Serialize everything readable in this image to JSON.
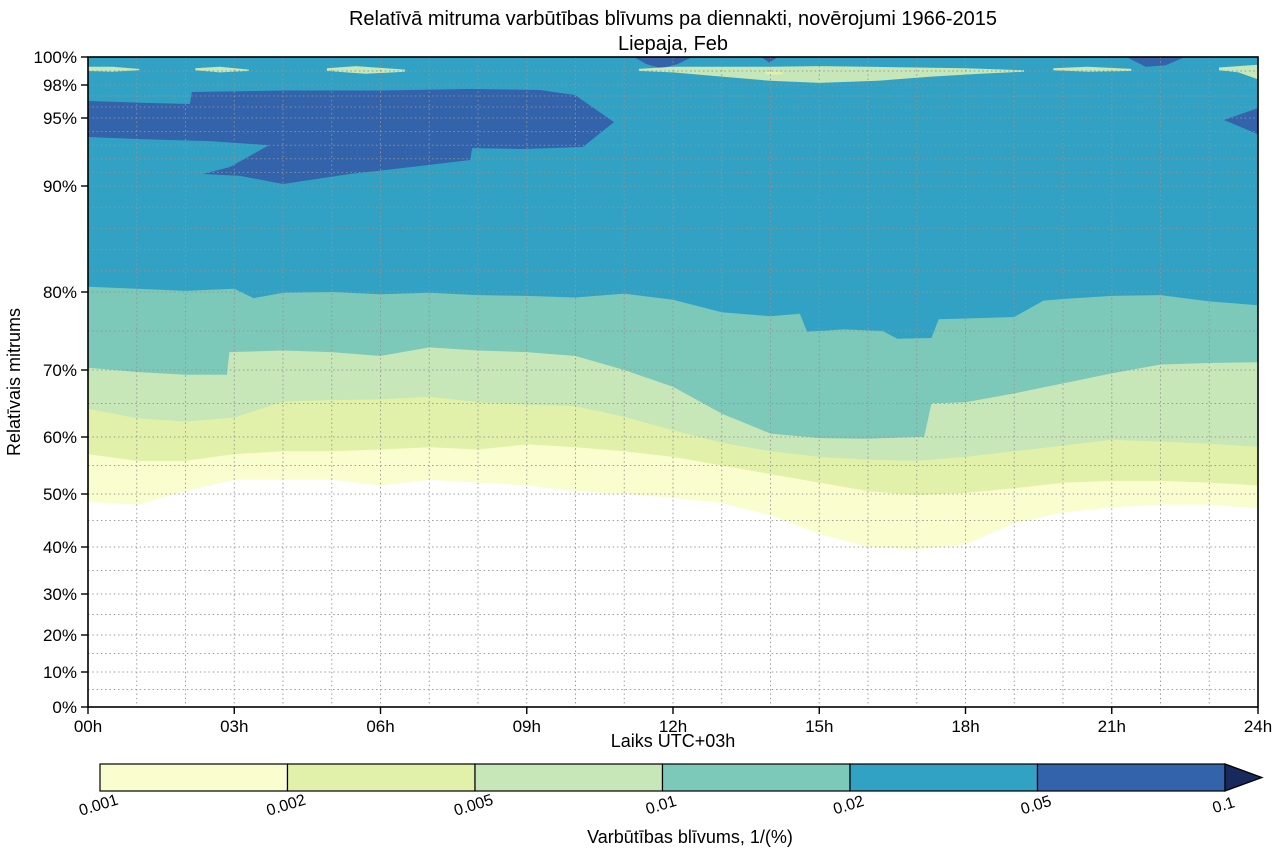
{
  "title": {
    "line1": "Relatīvā mitruma varbūtības blīvums pa diennakti, novērojumi 1966-2015",
    "line2": "Liepaja, Feb"
  },
  "axes": {
    "x_label": "Laiks UTC+03h",
    "y_label": "Relatīvais mitrums",
    "x_ticks": [
      {
        "t": 0,
        "label": "00h"
      },
      {
        "t": 3,
        "label": "03h"
      },
      {
        "t": 6,
        "label": "06h"
      },
      {
        "t": 9,
        "label": "09h"
      },
      {
        "t": 12,
        "label": "12h"
      },
      {
        "t": 15,
        "label": "15h"
      },
      {
        "t": 18,
        "label": "18h"
      },
      {
        "t": 21,
        "label": "21h"
      },
      {
        "t": 24,
        "label": "24h"
      }
    ],
    "y_ticks": [
      {
        "rh": 100,
        "label": "100%"
      },
      {
        "rh": 98,
        "label": "98%"
      },
      {
        "rh": 95,
        "label": "95%"
      },
      {
        "rh": 90,
        "label": "90%"
      },
      {
        "rh": 80,
        "label": "80%"
      },
      {
        "rh": 70,
        "label": "70%"
      },
      {
        "rh": 60,
        "label": "60%"
      },
      {
        "rh": 50,
        "label": "50%"
      },
      {
        "rh": 40,
        "label": "40%"
      },
      {
        "rh": 30,
        "label": "30%"
      },
      {
        "rh": 20,
        "label": "20%"
      },
      {
        "rh": 10,
        "label": "10%"
      },
      {
        "rh": 0,
        "label": "0%"
      }
    ]
  },
  "chart_data": {
    "type": "filled-contour",
    "title": "Relatīvā mitruma varbūtības blīvums pa diennakti, novērojumi 1966-2015",
    "subtitle": "Liepaja, Feb",
    "xlabel": "Laiks UTC+03h",
    "ylabel": "Relatīvais mitrums",
    "x_range_hours": [
      0,
      24
    ],
    "y_range_percent": [
      0,
      100
    ],
    "y_scale_anchors": [
      [
        0,
        707
      ],
      [
        10,
        672
      ],
      [
        20,
        635
      ],
      [
        30,
        594
      ],
      [
        40,
        547
      ],
      [
        50,
        494
      ],
      [
        60,
        437
      ],
      [
        70,
        370
      ],
      [
        80,
        292
      ],
      [
        90,
        186
      ],
      [
        95,
        118
      ],
      [
        98,
        85
      ],
      [
        99,
        71
      ],
      [
        100,
        57
      ]
    ],
    "grid": {
      "x_gridline_hours": [
        1,
        2,
        3,
        4,
        5,
        6,
        7,
        8,
        9,
        10,
        11,
        12,
        13,
        14,
        15,
        16,
        17,
        18,
        19,
        20,
        21,
        22,
        23
      ],
      "y_gridline_values": [
        99,
        98,
        97,
        96,
        95,
        94,
        93,
        92,
        91,
        90,
        88,
        86,
        84,
        82,
        80,
        75,
        70,
        65,
        60,
        55,
        50,
        45,
        40,
        35,
        30,
        25,
        20,
        15,
        10,
        5
      ]
    },
    "levels": [
      0.001,
      0.002,
      0.005,
      0.01,
      0.02,
      0.05,
      0.1
    ],
    "band_colors": {
      "0.001-0.002": "#fafdcd",
      "0.002-0.005": "#e2f1a9",
      "0.005-0.01": "#c7e7b8",
      "0.01-0.02": "#7cc8b9",
      "0.02-0.05": "#31a2c4",
      "0.05-0.1": "#3363ab",
      "over-0.1": "#17295d",
      "under-0.001": "#ffffff"
    },
    "bands": [
      {
        "level": 0.001,
        "color": "#fafdcd",
        "lower_boundary": [
          [
            0,
            48.5
          ],
          [
            1,
            48.0
          ],
          [
            2,
            50.5
          ],
          [
            3,
            52.5
          ],
          [
            4,
            52.5
          ],
          [
            5,
            52.5
          ],
          [
            6,
            51.5
          ],
          [
            7,
            52.5
          ],
          [
            8,
            52.0
          ],
          [
            9,
            51.5
          ],
          [
            10,
            50.5
          ],
          [
            11,
            50.0
          ],
          [
            12,
            49.3
          ],
          [
            13,
            48.3
          ],
          [
            14,
            46.0
          ],
          [
            15,
            42.5
          ],
          [
            16,
            40.0
          ],
          [
            17,
            39.5
          ],
          [
            18,
            40.5
          ],
          [
            19,
            44.5
          ],
          [
            20,
            46.5
          ],
          [
            21,
            47.5
          ],
          [
            22,
            48.0
          ],
          [
            23,
            48.0
          ],
          [
            24,
            47.3
          ]
        ]
      },
      {
        "level": 0.002,
        "color": "#e2f1a9",
        "lower_boundary": [
          [
            0,
            57.0
          ],
          [
            1,
            55.8
          ],
          [
            2,
            55.8
          ],
          [
            3,
            57.0
          ],
          [
            4,
            57.5
          ],
          [
            5,
            57.5
          ],
          [
            6,
            57.8
          ],
          [
            7,
            58.2
          ],
          [
            8,
            57.8
          ],
          [
            9,
            58.7
          ],
          [
            10,
            58.2
          ],
          [
            11,
            57.5
          ],
          [
            12,
            56.5
          ],
          [
            13,
            55.0
          ],
          [
            14,
            53.5
          ],
          [
            15,
            52.0
          ],
          [
            16,
            50.5
          ],
          [
            17,
            49.8
          ],
          [
            18,
            50.2
          ],
          [
            19,
            51.0
          ],
          [
            20,
            52.0
          ],
          [
            21,
            52.3
          ],
          [
            22,
            52.3
          ],
          [
            23,
            52.0
          ],
          [
            24,
            51.5
          ]
        ]
      },
      {
        "level": 0.005,
        "color": "#c7e7b8",
        "lower_boundary": [
          [
            0,
            64.2
          ],
          [
            1,
            62.8
          ],
          [
            2,
            62.3
          ],
          [
            3,
            62.9
          ],
          [
            4,
            65.3
          ],
          [
            5,
            65.5
          ],
          [
            6,
            65.6
          ],
          [
            7,
            66.0
          ],
          [
            8,
            65.2
          ],
          [
            9,
            64.8
          ],
          [
            10,
            64.6
          ],
          [
            11,
            63.0
          ],
          [
            12,
            61.0
          ],
          [
            13,
            59.0
          ],
          [
            14,
            57.5
          ],
          [
            15,
            56.5
          ],
          [
            16,
            56.0
          ],
          [
            17,
            55.8
          ],
          [
            18,
            56.5
          ],
          [
            19,
            57.5
          ],
          [
            20,
            58.5
          ],
          [
            21,
            59.5
          ],
          [
            22,
            59.2
          ],
          [
            23,
            58.8
          ],
          [
            24,
            58.3
          ]
        ]
      },
      {
        "level": 0.01,
        "color": "#7cc8b9",
        "lower_boundary": [
          [
            0,
            70.3
          ],
          [
            1,
            69.7
          ],
          [
            2,
            69.3
          ],
          [
            2.85,
            69.3
          ],
          [
            2.9,
            72.3
          ],
          [
            4,
            72.5
          ],
          [
            5,
            72.3
          ],
          [
            6,
            71.8
          ],
          [
            7,
            72.9
          ],
          [
            8,
            72.5
          ],
          [
            9,
            72.3
          ],
          [
            10,
            71.8
          ],
          [
            11,
            70.0
          ],
          [
            12,
            67.5
          ],
          [
            13,
            63.5
          ],
          [
            14,
            60.5
          ],
          [
            15,
            59.8
          ],
          [
            16,
            59.7
          ],
          [
            17,
            60.0
          ],
          [
            17.15,
            60.0
          ],
          [
            17.3,
            65.0
          ],
          [
            18,
            65.2
          ],
          [
            19,
            66.5
          ],
          [
            20,
            68.0
          ],
          [
            21,
            69.5
          ],
          [
            22,
            70.7
          ],
          [
            23,
            70.9
          ],
          [
            24,
            71.0
          ]
        ]
      },
      {
        "level": 0.02,
        "color": "#31a2c4",
        "lower_boundary": [
          [
            0,
            80.5
          ],
          [
            1,
            80.3
          ],
          [
            2,
            80.1
          ],
          [
            3,
            80.3
          ],
          [
            3.4,
            79.2
          ],
          [
            4,
            79.9
          ],
          [
            5,
            80.0
          ],
          [
            6,
            79.7
          ],
          [
            7,
            79.9
          ],
          [
            8,
            79.6
          ],
          [
            9,
            79.5
          ],
          [
            10,
            79.3
          ],
          [
            11,
            79.8
          ],
          [
            12,
            79.0
          ],
          [
            13,
            77.4
          ],
          [
            14,
            76.9
          ],
          [
            14.6,
            77.2
          ],
          [
            14.75,
            74.9
          ],
          [
            15.5,
            75.2
          ],
          [
            16.3,
            75.0
          ],
          [
            16.6,
            74.0
          ],
          [
            17.3,
            74.1
          ],
          [
            17.45,
            76.5
          ],
          [
            18,
            76.6
          ],
          [
            19,
            76.8
          ],
          [
            19.6,
            78.9
          ],
          [
            20,
            79.1
          ],
          [
            21,
            79.5
          ],
          [
            22,
            79.6
          ],
          [
            23,
            78.8
          ],
          [
            24,
            78.3
          ]
        ]
      }
    ],
    "high_density_blobs": [
      {
        "name": "main-morning-blob",
        "level": 0.05,
        "color": "#3363ab",
        "polygon": [
          [
            0,
            96.55
          ],
          [
            1,
            96.4
          ],
          [
            2.09,
            96.27
          ],
          [
            2.13,
            97.36
          ],
          [
            4,
            97.5
          ],
          [
            6,
            97.5
          ],
          [
            7.84,
            97.64
          ],
          [
            9.27,
            97.55
          ],
          [
            9.99,
            97.09
          ],
          [
            10.79,
            94.7
          ],
          [
            10.15,
            92.87
          ],
          [
            8.92,
            92.72
          ],
          [
            7.88,
            92.79
          ],
          [
            7.84,
            91.91
          ],
          [
            6.81,
            91.47
          ],
          [
            5.37,
            90.88
          ],
          [
            4.0,
            90.15
          ],
          [
            3.12,
            90.74
          ],
          [
            2.36,
            90.88
          ],
          [
            2.91,
            91.4
          ],
          [
            3.71,
            93.0
          ],
          [
            2.5,
            93.3
          ],
          [
            1.07,
            93.45
          ],
          [
            0,
            93.6
          ]
        ]
      },
      {
        "name": "right-edge-blob",
        "level": 0.05,
        "color": "#3363ab",
        "polygon": [
          [
            24,
            95.9
          ],
          [
            24,
            93.8
          ],
          [
            23.3,
            94.85
          ]
        ]
      },
      {
        "name": "top-edge-patch-noon",
        "level": 0.05,
        "color": "#3363ab",
        "polygon": [
          [
            11.2,
            100
          ],
          [
            12.4,
            100
          ],
          [
            12.1,
            99.5
          ],
          [
            11.75,
            99.2
          ],
          [
            11.45,
            99.5
          ]
        ]
      },
      {
        "name": "top-edge-patch-14h",
        "level": 0.05,
        "color": "#3363ab",
        "polygon": [
          [
            13.8,
            100
          ],
          [
            14.15,
            100
          ],
          [
            13.98,
            99.6
          ]
        ]
      },
      {
        "name": "top-edge-patch-22h",
        "level": 0.05,
        "color": "#3363ab",
        "polygon": [
          [
            21.3,
            100
          ],
          [
            22.5,
            100
          ],
          [
            22.1,
            99.4
          ],
          [
            21.7,
            99.3
          ]
        ]
      }
    ],
    "low_density_streaks": [
      {
        "name": "streak-00h",
        "color": "#c7e7b8",
        "polygon": [
          [
            0,
            99.3
          ],
          [
            0.5,
            99.3
          ],
          [
            1.05,
            99.15
          ],
          [
            1.05,
            99.05
          ],
          [
            0.5,
            98.95
          ],
          [
            0,
            99.0
          ]
        ]
      },
      {
        "name": "streak-03h",
        "color": "#c7e7b8",
        "polygon": [
          [
            2.2,
            99.2
          ],
          [
            2.7,
            99.3
          ],
          [
            3.3,
            99.1
          ],
          [
            3.3,
            99.0
          ],
          [
            2.7,
            98.9
          ],
          [
            2.2,
            99.05
          ]
        ]
      },
      {
        "name": "streak-06h",
        "color": "#c7e7b8",
        "polygon": [
          [
            4.9,
            99.2
          ],
          [
            5.5,
            99.35
          ],
          [
            6.5,
            99.1
          ],
          [
            6.5,
            98.95
          ],
          [
            5.7,
            98.8
          ],
          [
            4.9,
            99.0
          ]
        ]
      },
      {
        "name": "streak-afternoon",
        "color": "#c7e7b8",
        "polygon": [
          [
            11.3,
            99.15
          ],
          [
            12,
            99.3
          ],
          [
            13,
            99.3
          ],
          [
            14,
            99.3
          ],
          [
            15,
            99.35
          ],
          [
            16,
            99.3
          ],
          [
            17,
            99.25
          ],
          [
            18,
            99.2
          ],
          [
            19.2,
            99.05
          ],
          [
            19.2,
            98.95
          ],
          [
            18.3,
            98.8
          ],
          [
            17.3,
            98.6
          ],
          [
            16.2,
            98.3
          ],
          [
            15,
            98.15
          ],
          [
            14,
            98.3
          ],
          [
            13,
            98.6
          ],
          [
            12,
            98.9
          ],
          [
            11.3,
            99.0
          ]
        ]
      },
      {
        "name": "streak-20h",
        "color": "#c7e7b8",
        "polygon": [
          [
            19.8,
            99.2
          ],
          [
            20.5,
            99.3
          ],
          [
            21.4,
            99.15
          ],
          [
            21.4,
            99.0
          ],
          [
            20.5,
            98.95
          ],
          [
            19.8,
            99.05
          ]
        ]
      },
      {
        "name": "streak-24h",
        "color": "#c7e7b8",
        "polygon": [
          [
            23.2,
            99.25
          ],
          [
            24,
            99.45
          ],
          [
            24,
            98.4
          ],
          [
            23.6,
            98.9
          ],
          [
            23.2,
            99.05
          ]
        ]
      },
      {
        "name": "streak-dash-14h",
        "color": "#e2f1a9",
        "polygon": [
          [
            13.9,
            98.95
          ],
          [
            14.25,
            98.95
          ],
          [
            14.25,
            98.75
          ],
          [
            13.9,
            98.75
          ]
        ]
      }
    ],
    "colorbar": {
      "label": "Varbūtības blīvums, 1/(%)",
      "tick_labels": [
        "0.001",
        "0.002",
        "0.005",
        "0.01",
        "0.02",
        "0.05",
        "0.1"
      ],
      "segment_colors": [
        "#fafdcd",
        "#e2f1a9",
        "#c7e7b8",
        "#7cc8b9",
        "#31a2c4",
        "#3363ab"
      ],
      "arrow_color": "#17295d"
    }
  }
}
